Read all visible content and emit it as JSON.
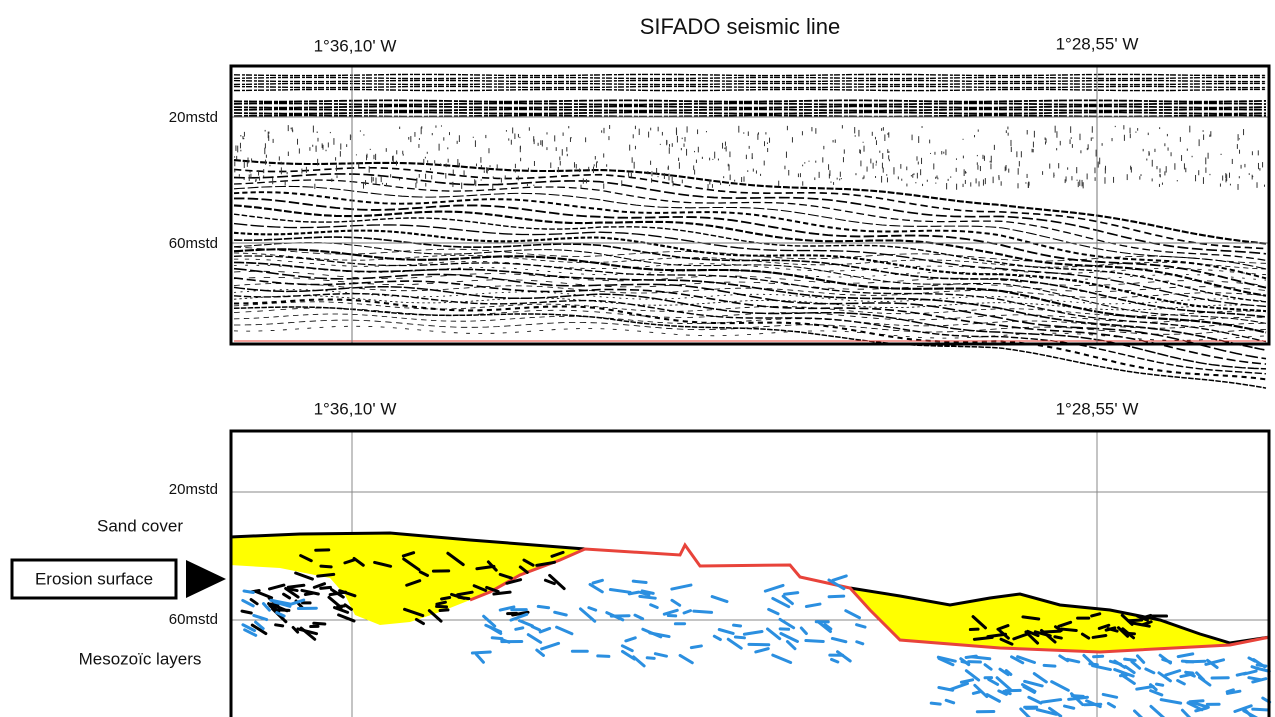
{
  "title": "SIFADO seismic line",
  "top_panel": {
    "longitudes": [
      "1°36,10' W",
      "1°28,55' W"
    ],
    "depths": [
      "20mstd",
      "60mstd"
    ]
  },
  "bottom_panel": {
    "longitudes": [
      "1°36,10' W",
      "1°28,55' W"
    ],
    "depths": [
      "20mstd",
      "60mstd"
    ],
    "legend": {
      "sand_cover": "Sand cover",
      "erosion_surface": "Erosion surface",
      "mesozoic_layers": "Mesozoïc layers"
    }
  }
}
